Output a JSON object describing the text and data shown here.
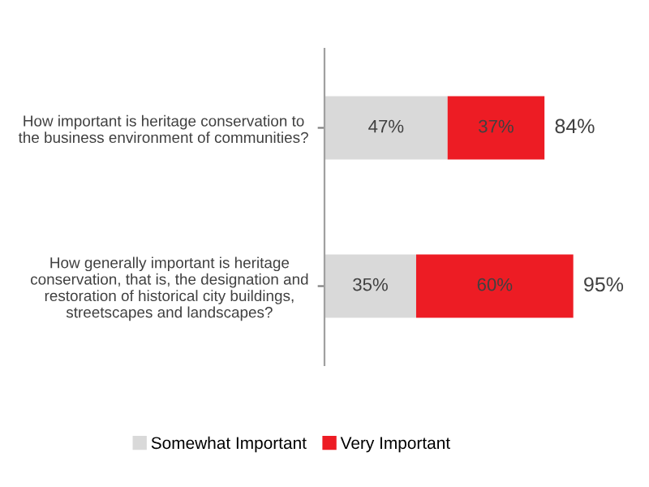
{
  "chart_data": {
    "type": "bar",
    "orientation": "horizontal",
    "stacked": true,
    "legend": "bottom",
    "categories": [
      "How important is heritage conservation to the business environment of communities?",
      "How generally important is heritage conservation, that is, the designation and restoration of historical city buildings, streetscapes and landscapes?"
    ],
    "series": [
      {
        "name": "Somewhat Important",
        "color": "#d9d9d9",
        "values": [
          47,
          35
        ],
        "value_labels": [
          "47%",
          "35%"
        ]
      },
      {
        "name": "Very Important",
        "color": "#ed1c24",
        "values": [
          37,
          60
        ],
        "value_labels": [
          "37%",
          "60%"
        ]
      }
    ],
    "totals": [
      "84%",
      "95%"
    ]
  }
}
